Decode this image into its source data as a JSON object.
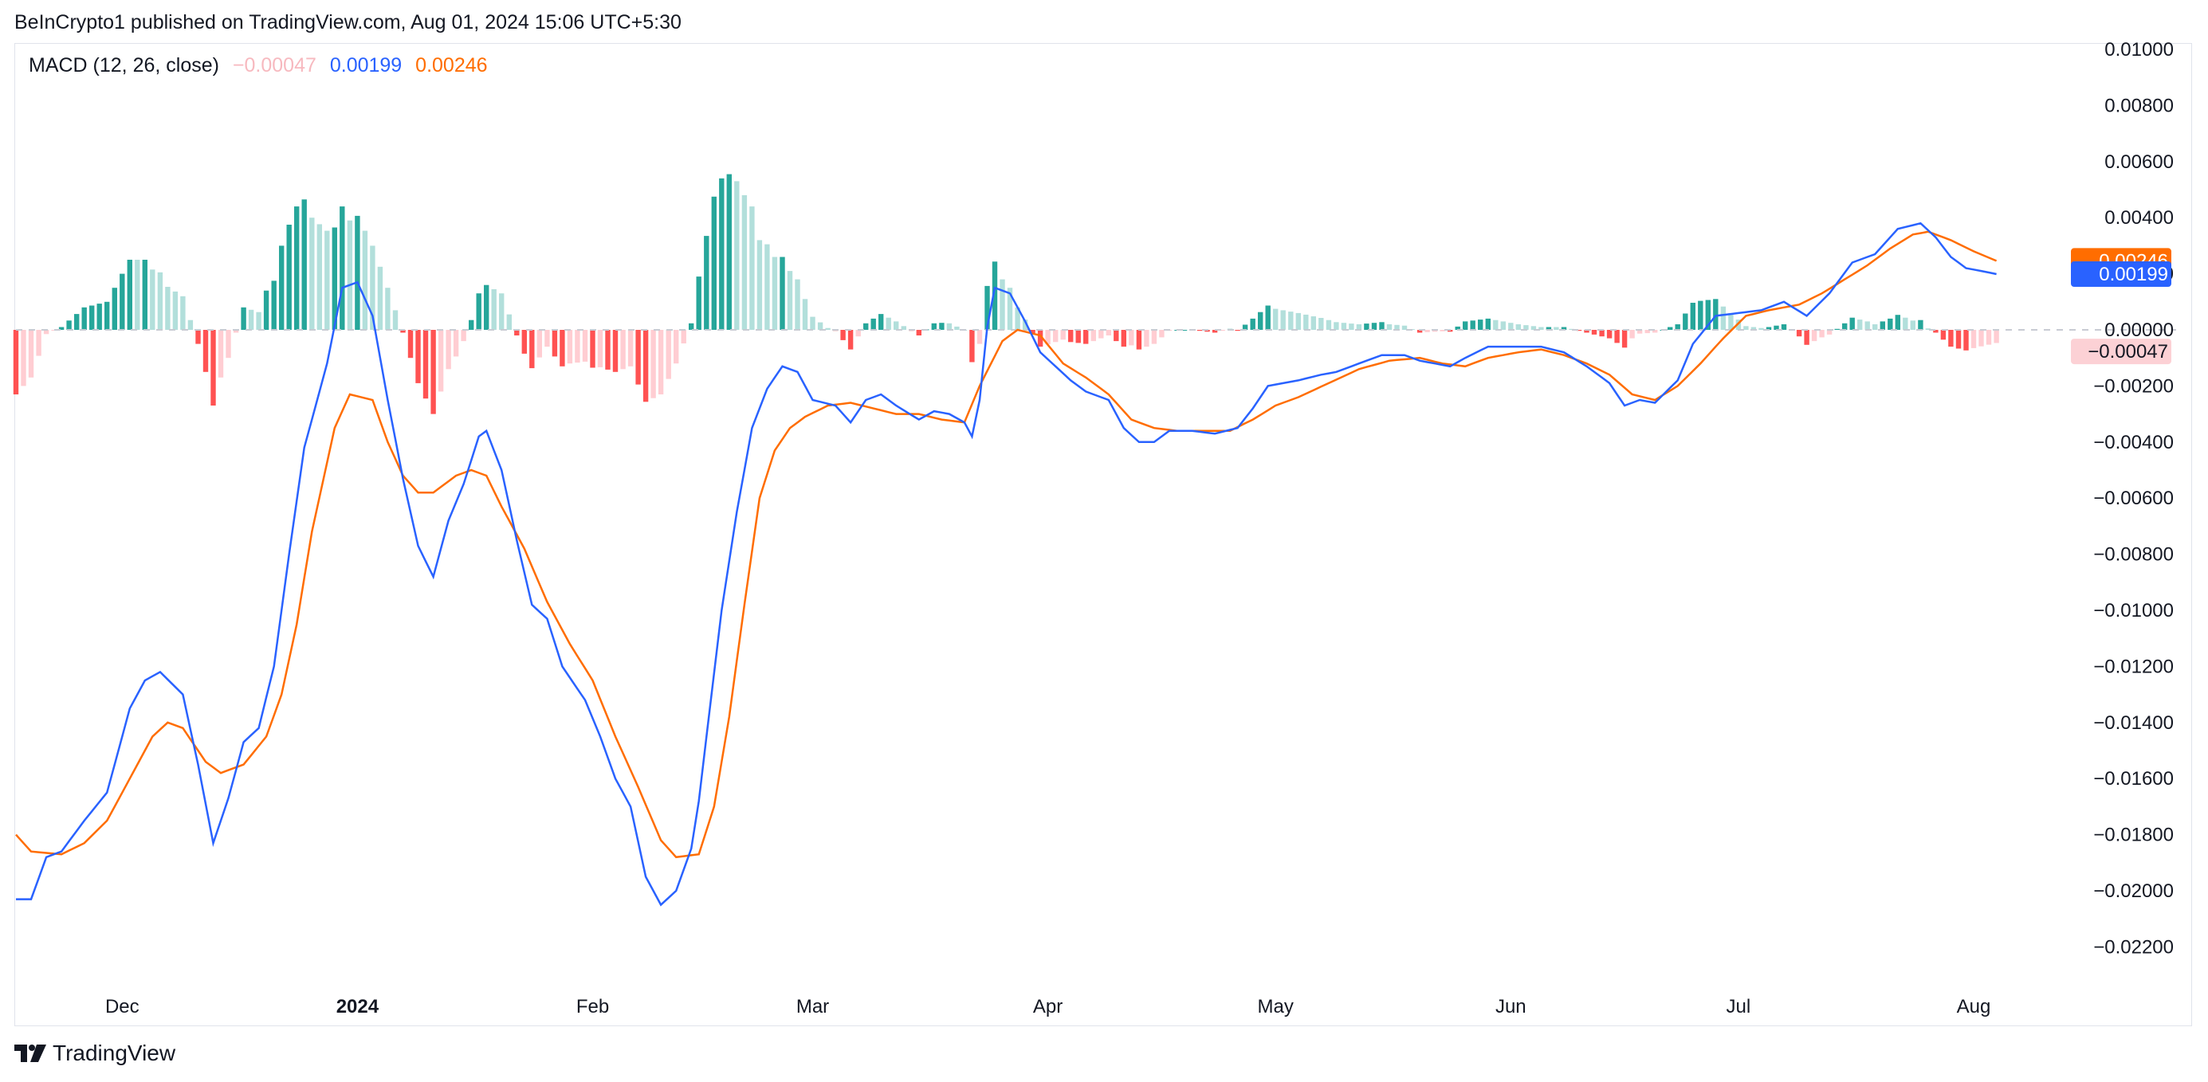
{
  "header": {
    "published": "BeInCrypto1 published on TradingView.com, Aug 01, 2024 15:06 UTC+5:30"
  },
  "legend": {
    "label": "MACD (12, 26, close)",
    "histogram_value": "−0.00047",
    "macd_value": "0.00199",
    "signal_value": "0.00246"
  },
  "price_tags": {
    "signal": "0.00246",
    "macd": "0.00199",
    "histogram": "−0.00047"
  },
  "footer": {
    "brand": "TradingView"
  },
  "colors": {
    "macd": "#2962ff",
    "signal": "#ff6d00",
    "hist_pos_strong": "#26a69a",
    "hist_pos_weak": "#b2dfdb",
    "hist_neg_strong": "#ff5252",
    "hist_neg_weak": "#ffcdd2"
  },
  "chart_data": {
    "type": "line",
    "title": "",
    "xlabel": "",
    "ylabel": "",
    "ylim": [
      -0.0233,
      0.0101
    ],
    "y_ticks": [
      "0.01000",
      "0.00800",
      "0.00600",
      "0.00400",
      "0.00200",
      "0.00000",
      "−0.00200",
      "−0.00400",
      "−0.00600",
      "−0.00800",
      "−0.01000",
      "−0.01200",
      "−0.01400",
      "−0.01600",
      "−0.01800",
      "−0.02000",
      "−0.02200"
    ],
    "y_tick_values": [
      0.01,
      0.008,
      0.006,
      0.004,
      0.002,
      0,
      -0.002,
      -0.004,
      -0.006,
      -0.008,
      -0.01,
      -0.012,
      -0.014,
      -0.016,
      -0.018,
      -0.02,
      -0.022
    ],
    "x_ticks": [
      {
        "label": "Dec",
        "date": "2023-12-01",
        "bold": false
      },
      {
        "label": "2024",
        "date": "2024-01-01",
        "bold": true
      },
      {
        "label": "Feb",
        "date": "2024-02-01",
        "bold": false
      },
      {
        "label": "Mar",
        "date": "2024-03-01",
        "bold": false
      },
      {
        "label": "Apr",
        "date": "2024-04-01",
        "bold": false
      },
      {
        "label": "May",
        "date": "2024-05-01",
        "bold": false
      },
      {
        "label": "Jun",
        "date": "2024-06-01",
        "bold": false
      },
      {
        "label": "Jul",
        "date": "2024-07-01",
        "bold": false
      },
      {
        "label": "Aug",
        "date": "2024-08-01",
        "bold": false
      }
    ],
    "x_range": [
      "2023-11-17",
      "2024-08-01"
    ],
    "grid": false,
    "macd_keypoints": [
      [
        "2023-11-17",
        -0.0203
      ],
      [
        "2023-11-19",
        -0.0203
      ],
      [
        "2023-11-21",
        -0.0188
      ],
      [
        "2023-11-23",
        -0.0186
      ],
      [
        "2023-11-26",
        -0.0175
      ],
      [
        "2023-11-29",
        -0.0165
      ],
      [
        "2023-12-02",
        -0.0135
      ],
      [
        "2023-12-04",
        -0.0125
      ],
      [
        "2023-12-06",
        -0.0122
      ],
      [
        "2023-12-09",
        -0.013
      ],
      [
        "2023-12-11",
        -0.0155
      ],
      [
        "2023-12-13",
        -0.0183
      ],
      [
        "2023-12-15",
        -0.0167
      ],
      [
        "2023-12-17",
        -0.0147
      ],
      [
        "2023-12-19",
        -0.0142
      ],
      [
        "2023-12-21",
        -0.012
      ],
      [
        "2023-12-23",
        -0.008
      ],
      [
        "2023-12-25",
        -0.0042
      ],
      [
        "2023-12-28",
        -0.0012
      ],
      [
        "2023-12-30",
        0.0015
      ],
      [
        "2024-01-01",
        0.0017
      ],
      [
        "2024-01-03",
        0.0005
      ],
      [
        "2024-01-05",
        -0.0025
      ],
      [
        "2024-01-07",
        -0.0053
      ],
      [
        "2024-01-09",
        -0.0077
      ],
      [
        "2024-01-11",
        -0.0088
      ],
      [
        "2024-01-13",
        -0.0068
      ],
      [
        "2024-01-15",
        -0.0055
      ],
      [
        "2024-01-17",
        -0.0038
      ],
      [
        "2024-01-18",
        -0.0036
      ],
      [
        "2024-01-20",
        -0.005
      ],
      [
        "2024-01-22",
        -0.0075
      ],
      [
        "2024-01-24",
        -0.0098
      ],
      [
        "2024-01-26",
        -0.0103
      ],
      [
        "2024-01-28",
        -0.012
      ],
      [
        "2024-01-31",
        -0.0132
      ],
      [
        "2024-02-02",
        -0.0145
      ],
      [
        "2024-02-04",
        -0.016
      ],
      [
        "2024-02-06",
        -0.017
      ],
      [
        "2024-02-08",
        -0.0195
      ],
      [
        "2024-02-10",
        -0.0205
      ],
      [
        "2024-02-12",
        -0.02
      ],
      [
        "2024-02-14",
        -0.0185
      ],
      [
        "2024-02-15",
        -0.0168
      ],
      [
        "2024-02-16",
        -0.0145
      ],
      [
        "2024-02-18",
        -0.01
      ],
      [
        "2024-02-20",
        -0.0065
      ],
      [
        "2024-02-22",
        -0.0035
      ],
      [
        "2024-02-24",
        -0.0021
      ],
      [
        "2024-02-26",
        -0.0013
      ],
      [
        "2024-02-28",
        -0.0015
      ],
      [
        "2024-03-01",
        -0.0025
      ],
      [
        "2024-03-04",
        -0.0027
      ],
      [
        "2024-03-06",
        -0.0033
      ],
      [
        "2024-03-08",
        -0.0025
      ],
      [
        "2024-03-10",
        -0.0023
      ],
      [
        "2024-03-12",
        -0.0027
      ],
      [
        "2024-03-15",
        -0.0032
      ],
      [
        "2024-03-17",
        -0.0029
      ],
      [
        "2024-03-19",
        -0.003
      ],
      [
        "2024-03-21",
        -0.0033
      ],
      [
        "2024-03-22",
        -0.0038
      ],
      [
        "2024-03-23",
        -0.0025
      ],
      [
        "2024-03-24",
        0.0001
      ],
      [
        "2024-03-25",
        0.0015
      ],
      [
        "2024-03-27",
        0.0013
      ],
      [
        "2024-03-29",
        0.0003
      ],
      [
        "2024-03-31",
        -0.0008
      ],
      [
        "2024-04-02",
        -0.0013
      ],
      [
        "2024-04-04",
        -0.0018
      ],
      [
        "2024-04-06",
        -0.0022
      ],
      [
        "2024-04-09",
        -0.0025
      ],
      [
        "2024-04-11",
        -0.0035
      ],
      [
        "2024-04-13",
        -0.004
      ],
      [
        "2024-04-15",
        -0.004
      ],
      [
        "2024-04-17",
        -0.0036
      ],
      [
        "2024-04-20",
        -0.0036
      ],
      [
        "2024-04-23",
        -0.0037
      ],
      [
        "2024-04-26",
        -0.0035
      ],
      [
        "2024-04-28",
        -0.0028
      ],
      [
        "2024-04-30",
        -0.002
      ],
      [
        "2024-05-04",
        -0.0018
      ],
      [
        "2024-05-07",
        -0.0016
      ],
      [
        "2024-05-09",
        -0.0015
      ],
      [
        "2024-05-12",
        -0.0012
      ],
      [
        "2024-05-15",
        -0.0009
      ],
      [
        "2024-05-18",
        -0.0009
      ],
      [
        "2024-05-20",
        -0.0011
      ],
      [
        "2024-05-22",
        -0.0012
      ],
      [
        "2024-05-24",
        -0.0013
      ],
      [
        "2024-05-26",
        -0.001
      ],
      [
        "2024-05-29",
        -0.0006
      ],
      [
        "2024-06-02",
        -0.0006
      ],
      [
        "2024-06-05",
        -0.0006
      ],
      [
        "2024-06-08",
        -0.0008
      ],
      [
        "2024-06-11",
        -0.0013
      ],
      [
        "2024-06-14",
        -0.0019
      ],
      [
        "2024-06-16",
        -0.0027
      ],
      [
        "2024-06-18",
        -0.0025
      ],
      [
        "2024-06-20",
        -0.0026
      ],
      [
        "2024-06-23",
        -0.0018
      ],
      [
        "2024-06-25",
        -0.0005
      ],
      [
        "2024-06-28",
        0.0005
      ],
      [
        "2024-07-01",
        0.0006
      ],
      [
        "2024-07-04",
        0.0007
      ],
      [
        "2024-07-07",
        0.001
      ],
      [
        "2024-07-10",
        0.0005
      ],
      [
        "2024-07-13",
        0.0013
      ],
      [
        "2024-07-16",
        0.0024
      ],
      [
        "2024-07-19",
        0.0027
      ],
      [
        "2024-07-22",
        0.0036
      ],
      [
        "2024-07-25",
        0.0038
      ],
      [
        "2024-07-27",
        0.0033
      ],
      [
        "2024-07-29",
        0.0026
      ],
      [
        "2024-07-31",
        0.0022
      ],
      [
        "2024-08-02",
        0.0021
      ],
      [
        "2024-08-04",
        0.00199
      ]
    ],
    "signal_keypoints": [
      [
        "2023-11-17",
        -0.018
      ],
      [
        "2023-11-19",
        -0.0186
      ],
      [
        "2023-11-23",
        -0.0187
      ],
      [
        "2023-11-26",
        -0.0183
      ],
      [
        "2023-11-29",
        -0.0175
      ],
      [
        "2023-12-02",
        -0.016
      ],
      [
        "2023-12-05",
        -0.0145
      ],
      [
        "2023-12-07",
        -0.014
      ],
      [
        "2023-12-09",
        -0.0142
      ],
      [
        "2023-12-12",
        -0.0154
      ],
      [
        "2023-12-14",
        -0.0158
      ],
      [
        "2023-12-17",
        -0.0155
      ],
      [
        "2023-12-20",
        -0.0145
      ],
      [
        "2023-12-22",
        -0.013
      ],
      [
        "2023-12-24",
        -0.0105
      ],
      [
        "2023-12-26",
        -0.0072
      ],
      [
        "2023-12-29",
        -0.0035
      ],
      [
        "2023-12-31",
        -0.0023
      ],
      [
        "2024-01-03",
        -0.0025
      ],
      [
        "2024-01-05",
        -0.004
      ],
      [
        "2024-01-07",
        -0.0052
      ],
      [
        "2024-01-09",
        -0.0058
      ],
      [
        "2024-01-11",
        -0.0058
      ],
      [
        "2024-01-14",
        -0.0052
      ],
      [
        "2024-01-16",
        -0.005
      ],
      [
        "2024-01-18",
        -0.0052
      ],
      [
        "2024-01-20",
        -0.0063
      ],
      [
        "2024-01-23",
        -0.0078
      ],
      [
        "2024-01-26",
        -0.0097
      ],
      [
        "2024-01-29",
        -0.0112
      ],
      [
        "2024-02-01",
        -0.0125
      ],
      [
        "2024-02-04",
        -0.0145
      ],
      [
        "2024-02-07",
        -0.0163
      ],
      [
        "2024-02-10",
        -0.0182
      ],
      [
        "2024-02-12",
        -0.0188
      ],
      [
        "2024-02-15",
        -0.0187
      ],
      [
        "2024-02-17",
        -0.017
      ],
      [
        "2024-02-19",
        -0.0138
      ],
      [
        "2024-02-21",
        -0.0098
      ],
      [
        "2024-02-23",
        -0.006
      ],
      [
        "2024-02-25",
        -0.0043
      ],
      [
        "2024-02-27",
        -0.0035
      ],
      [
        "2024-02-29",
        -0.0031
      ],
      [
        "2024-03-03",
        -0.0027
      ],
      [
        "2024-03-06",
        -0.0026
      ],
      [
        "2024-03-09",
        -0.0028
      ],
      [
        "2024-03-12",
        -0.003
      ],
      [
        "2024-03-15",
        -0.003
      ],
      [
        "2024-03-18",
        -0.0032
      ],
      [
        "2024-03-21",
        -0.0033
      ],
      [
        "2024-03-23",
        -0.002
      ],
      [
        "2024-03-26",
        -0.0004
      ],
      [
        "2024-03-28",
        0.0
      ],
      [
        "2024-03-31",
        -0.0002
      ],
      [
        "2024-04-03",
        -0.0012
      ],
      [
        "2024-04-06",
        -0.0017
      ],
      [
        "2024-04-09",
        -0.0023
      ],
      [
        "2024-04-12",
        -0.0032
      ],
      [
        "2024-04-15",
        -0.0035
      ],
      [
        "2024-04-18",
        -0.0036
      ],
      [
        "2024-04-22",
        -0.0036
      ],
      [
        "2024-04-25",
        -0.0036
      ],
      [
        "2024-04-28",
        -0.0032
      ],
      [
        "2024-05-01",
        -0.0027
      ],
      [
        "2024-05-04",
        -0.0024
      ],
      [
        "2024-05-08",
        -0.0019
      ],
      [
        "2024-05-12",
        -0.0014
      ],
      [
        "2024-05-16",
        -0.0011
      ],
      [
        "2024-05-20",
        -0.001
      ],
      [
        "2024-05-23",
        -0.0012
      ],
      [
        "2024-05-26",
        -0.0013
      ],
      [
        "2024-05-29",
        -0.001
      ],
      [
        "2024-06-02",
        -0.0008
      ],
      [
        "2024-06-05",
        -0.0007
      ],
      [
        "2024-06-08",
        -0.0009
      ],
      [
        "2024-06-11",
        -0.0012
      ],
      [
        "2024-06-14",
        -0.0016
      ],
      [
        "2024-06-17",
        -0.0023
      ],
      [
        "2024-06-20",
        -0.0025
      ],
      [
        "2024-06-23",
        -0.002
      ],
      [
        "2024-06-26",
        -0.0012
      ],
      [
        "2024-06-29",
        -0.0003
      ],
      [
        "2024-07-02",
        0.0005
      ],
      [
        "2024-07-05",
        0.0007
      ],
      [
        "2024-07-09",
        0.0009
      ],
      [
        "2024-07-12",
        0.0013
      ],
      [
        "2024-07-15",
        0.0018
      ],
      [
        "2024-07-18",
        0.0023
      ],
      [
        "2024-07-21",
        0.0029
      ],
      [
        "2024-07-24",
        0.0034
      ],
      [
        "2024-07-26",
        0.0035
      ],
      [
        "2024-07-29",
        0.0032
      ],
      [
        "2024-08-01",
        0.0028
      ],
      [
        "2024-08-04",
        0.00246
      ]
    ]
  }
}
